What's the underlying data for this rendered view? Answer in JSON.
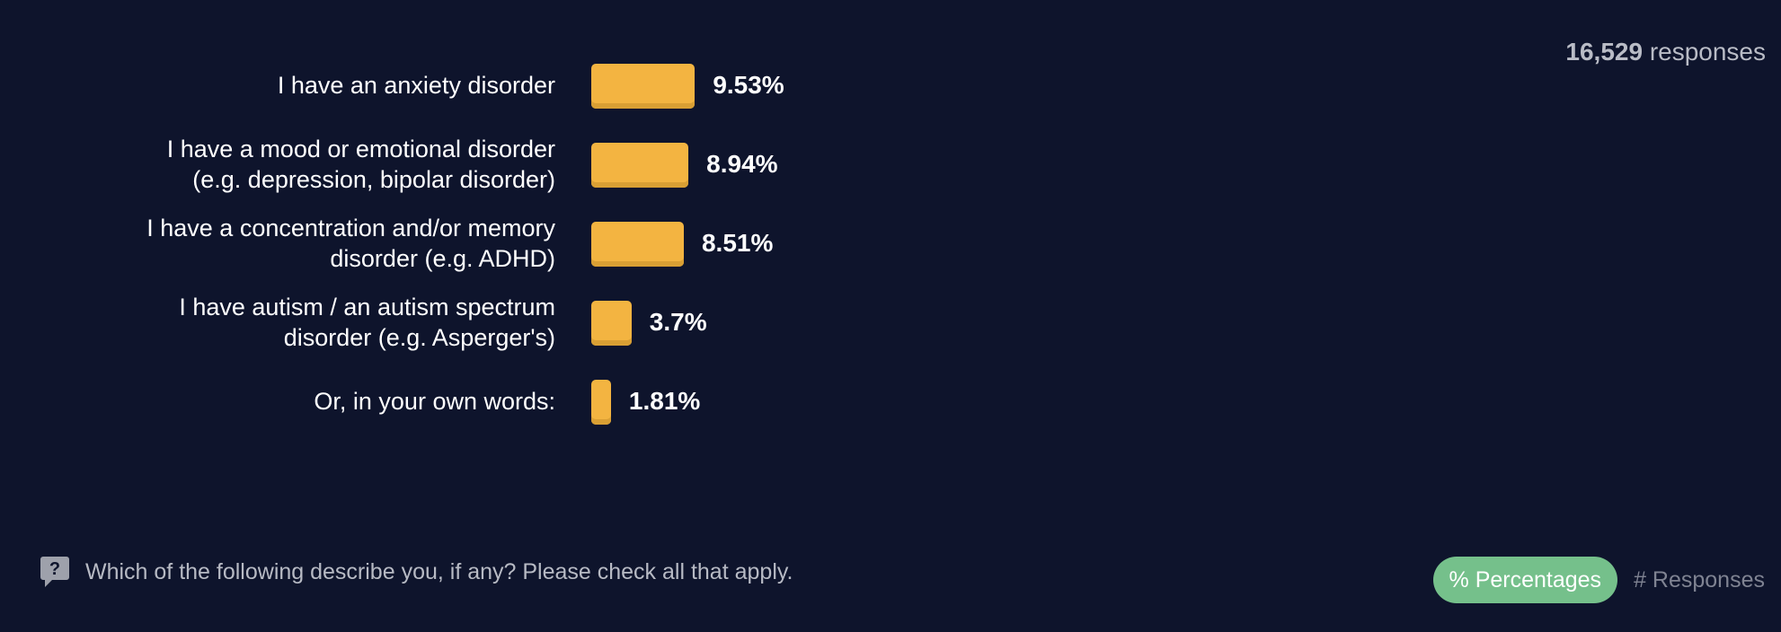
{
  "header": {
    "total_count": "16,529",
    "total_suffix": "responses"
  },
  "chart_data": {
    "type": "bar",
    "orientation": "horizontal",
    "categories": [
      [
        "I have an anxiety disorder"
      ],
      [
        "I have a mood or emotional disorder",
        "(e.g. depression, bipolar disorder)"
      ],
      [
        "I have a concentration and/or memory",
        "disorder (e.g. ADHD)"
      ],
      [
        "I have autism / an autism spectrum",
        "disorder (e.g. Asperger's)"
      ],
      [
        "Or, in your own words:"
      ]
    ],
    "values": [
      9.53,
      8.94,
      8.51,
      3.7,
      1.81
    ],
    "value_labels": [
      "9.53%",
      "8.94%",
      "8.51%",
      "3.7%",
      "1.81%"
    ],
    "unit": "%",
    "grid": false,
    "colors": {
      "bar": "#f3b441",
      "background": "#0e142c"
    }
  },
  "footer": {
    "question": "Which of the following describe you, if any? Please check all that apply.",
    "icon": "question-icon",
    "toggle_percent_label": "% Percentages",
    "toggle_responses_label": "# Responses",
    "toggle_active_color": "#75c08b"
  }
}
